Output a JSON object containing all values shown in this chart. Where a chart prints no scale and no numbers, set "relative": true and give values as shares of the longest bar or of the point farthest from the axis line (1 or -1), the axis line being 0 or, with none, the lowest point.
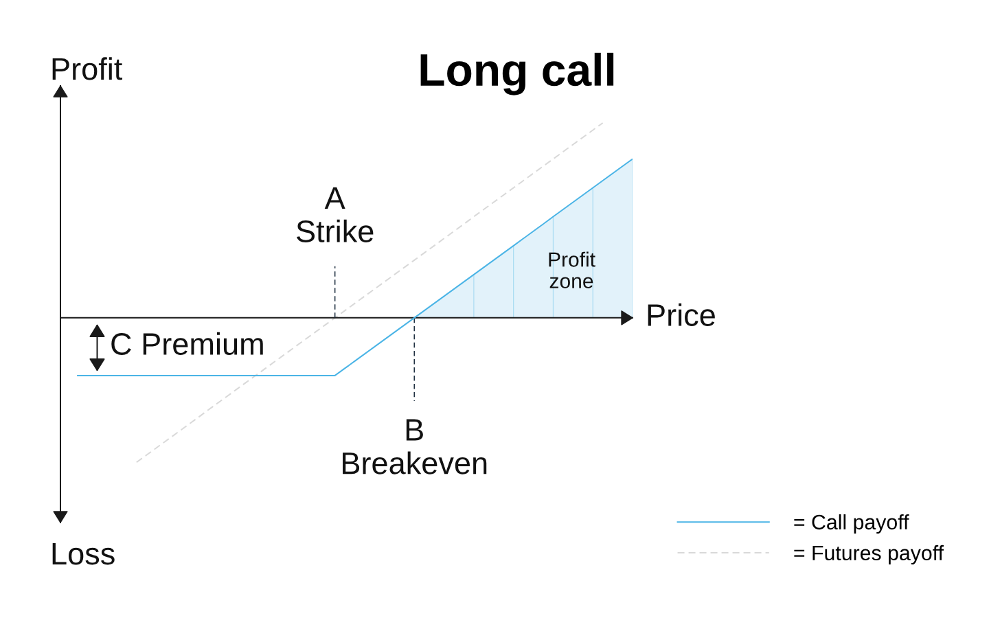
{
  "chart_data": {
    "type": "line",
    "title": "Long call",
    "xlabel": "Price",
    "ylabel": "Profit",
    "relative": true,
    "legend": "bottom right",
    "categories": [
      null,
      null,
      null,
      null,
      null,
      null,
      null,
      null,
      null,
      null,
      null,
      null,
      null,
      null,
      null,
      null,
      null,
      null,
      null,
      null,
      null,
      null,
      null,
      null,
      null,
      null,
      "A\nStrike",
      null,
      null,
      null,
      null,
      null,
      null,
      null,
      "B\nBreakeven",
      null,
      null,
      null,
      null,
      null,
      null,
      null,
      null,
      null,
      null,
      null,
      null,
      null,
      null,
      null,
      null,
      null,
      null,
      null,
      null,
      null,
      null
    ],
    "series": [
      {
        "name": "= Call payoff",
        "color": "#4ab4e6",
        "values": [
          -0.296,
          -0.296,
          -0.296,
          -0.296,
          -0.296,
          -0.296,
          -0.296,
          -0.296,
          -0.296,
          -0.296,
          -0.296,
          -0.296,
          -0.296,
          -0.296,
          -0.296,
          -0.296,
          -0.296,
          -0.296,
          -0.296,
          -0.296,
          -0.296,
          -0.296,
          -0.296,
          -0.296,
          -0.296,
          -0.296,
          -0.296,
          -0.259,
          -0.222,
          -0.185,
          -0.148,
          -0.111,
          -0.074,
          -0.037,
          0,
          0.037,
          0.074,
          0.111,
          0.148,
          0.185,
          0.222,
          0.259,
          0.296,
          0.333,
          0.37,
          0.407,
          0.444,
          0.481,
          0.519,
          0.556,
          0.593,
          0.63,
          0.667,
          0.704,
          0.741,
          0.778,
          0.815
        ]
      },
      {
        "name": "= Futures payoff",
        "color": "#d9d9d9",
        "line_style": "dashed",
        "values": [
          null,
          null,
          null,
          null,
          null,
          null,
          -0.741,
          -0.704,
          -0.667,
          -0.63,
          -0.593,
          -0.556,
          -0.519,
          -0.481,
          -0.444,
          -0.407,
          -0.37,
          -0.333,
          -0.296,
          -0.259,
          -0.222,
          -0.185,
          -0.148,
          -0.111,
          -0.074,
          -0.037,
          0,
          0.037,
          0.074,
          0.111,
          0.148,
          0.185,
          0.222,
          0.259,
          0.296,
          0.333,
          0.37,
          0.407,
          0.444,
          0.481,
          0.519,
          0.556,
          0.593,
          0.63,
          0.667,
          0.704,
          0.741,
          0.778,
          0.815,
          0.852,
          0.889,
          0.926,
          0.963,
          1,
          null,
          null,
          null
        ]
      },
      {
        "name": "Profit\nzone",
        "type": "area",
        "color": "#e2f2fa",
        "values": [
          null,
          null,
          null,
          null,
          null,
          null,
          null,
          null,
          null,
          null,
          null,
          null,
          null,
          null,
          null,
          null,
          null,
          null,
          null,
          null,
          null,
          null,
          null,
          null,
          null,
          null,
          null,
          null,
          null,
          null,
          null,
          null,
          null,
          null,
          0,
          0.037,
          0.074,
          0.111,
          0.148,
          0.185,
          0.222,
          0.259,
          0.296,
          0.333,
          0.37,
          0.407,
          0.444,
          0.481,
          0.519,
          0.556,
          0.593,
          0.63,
          0.667,
          0.704,
          0.741,
          0.778,
          0.815
        ]
      }
    ],
    "ref_lines": [
      {
        "axis": "x",
        "value": "A\nStrike",
        "color": "#1c2d3e",
        "line_style": "dashed"
      },
      {
        "axis": "x",
        "value": "B\nBreakeven",
        "color": "#1c2d3e",
        "line_style": "dashed"
      }
    ],
    "annotations": [
      "Loss",
      {
        "text": "C Premium",
        "y": -0.296
      }
    ]
  }
}
